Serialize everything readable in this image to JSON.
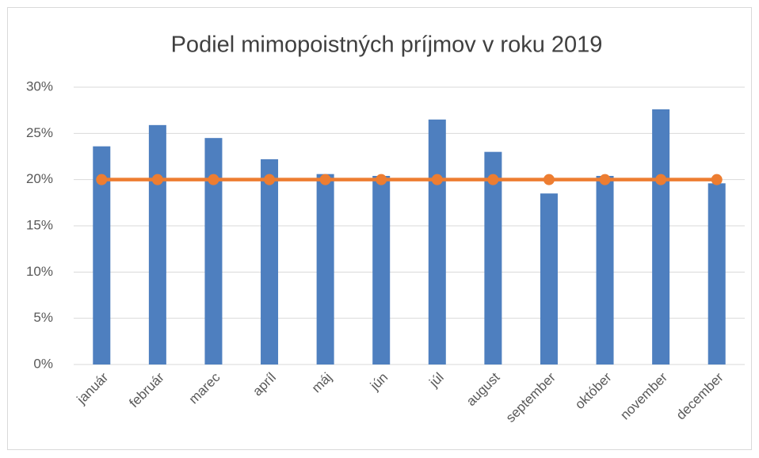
{
  "chart_data": {
    "type": "bar",
    "title": "Podiel mimopoistných príjmov v roku 2019",
    "categories": [
      "január",
      "február",
      "marec",
      "apríl",
      "máj",
      "jún",
      "júl",
      "august",
      "september",
      "október",
      "november",
      "december"
    ],
    "series": [
      {
        "type": "bar",
        "color": "#4e7fbf",
        "values": [
          23.6,
          25.9,
          24.5,
          22.2,
          20.6,
          20.4,
          26.5,
          23.0,
          18.5,
          20.4,
          27.6,
          19.6
        ]
      },
      {
        "type": "line",
        "color": "#ed7d31",
        "values": [
          20,
          20,
          20,
          20,
          20,
          20,
          20,
          20,
          20,
          20,
          20,
          20
        ]
      }
    ],
    "ylim": [
      0,
      30
    ],
    "yticks": [
      {
        "value": 0,
        "label": "0%"
      },
      {
        "value": 5,
        "label": "5%"
      },
      {
        "value": 10,
        "label": "10%"
      },
      {
        "value": 15,
        "label": "15%"
      },
      {
        "value": 20,
        "label": "20%"
      },
      {
        "value": 25,
        "label": "25%"
      },
      {
        "value": 30,
        "label": "30%"
      }
    ],
    "grid": true
  }
}
